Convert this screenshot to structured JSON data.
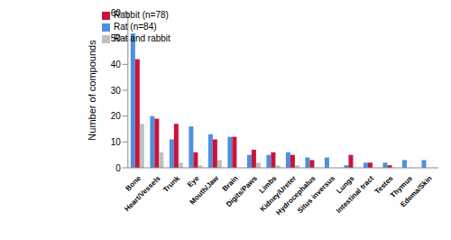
{
  "chart_data": {
    "type": "bar",
    "y_label": "Number of compounds",
    "categories": [
      "Bone",
      "Heart/Vessels",
      "Trunk",
      "Eye",
      "Mouth/Jaw",
      "Brain",
      "Digits/Paws",
      "Limbs",
      "Kidney/Ureter",
      "Hydrocephalus",
      "Situs inversus",
      "Lungs",
      "Intestinal tract",
      "Testes",
      "Thymus",
      "Edema/Skin"
    ],
    "series": [
      {
        "name": "Rat (n=84)",
        "color": "#4f8fe0",
        "values": [
          52,
          20,
          11,
          16,
          13,
          12,
          5,
          5,
          6,
          4,
          4,
          1,
          2,
          2,
          3,
          3
        ]
      },
      {
        "name": "Rabbit (n=78)",
        "color": "#c8143c",
        "values": [
          42,
          19,
          17,
          6,
          11,
          12,
          7,
          6,
          5,
          3,
          0,
          5,
          2,
          1,
          0,
          0
        ]
      },
      {
        "name": "Rat and rabbit",
        "color": "#c0c0c0",
        "values": [
          17,
          6,
          2,
          1,
          3,
          0,
          2,
          1,
          1,
          0,
          0,
          0,
          0,
          0,
          0,
          0
        ]
      }
    ],
    "ylim": [
      0,
      60
    ],
    "yticks": [
      0,
      10,
      20,
      30,
      40,
      50,
      60
    ],
    "grid": false,
    "legend": "upper left"
  }
}
